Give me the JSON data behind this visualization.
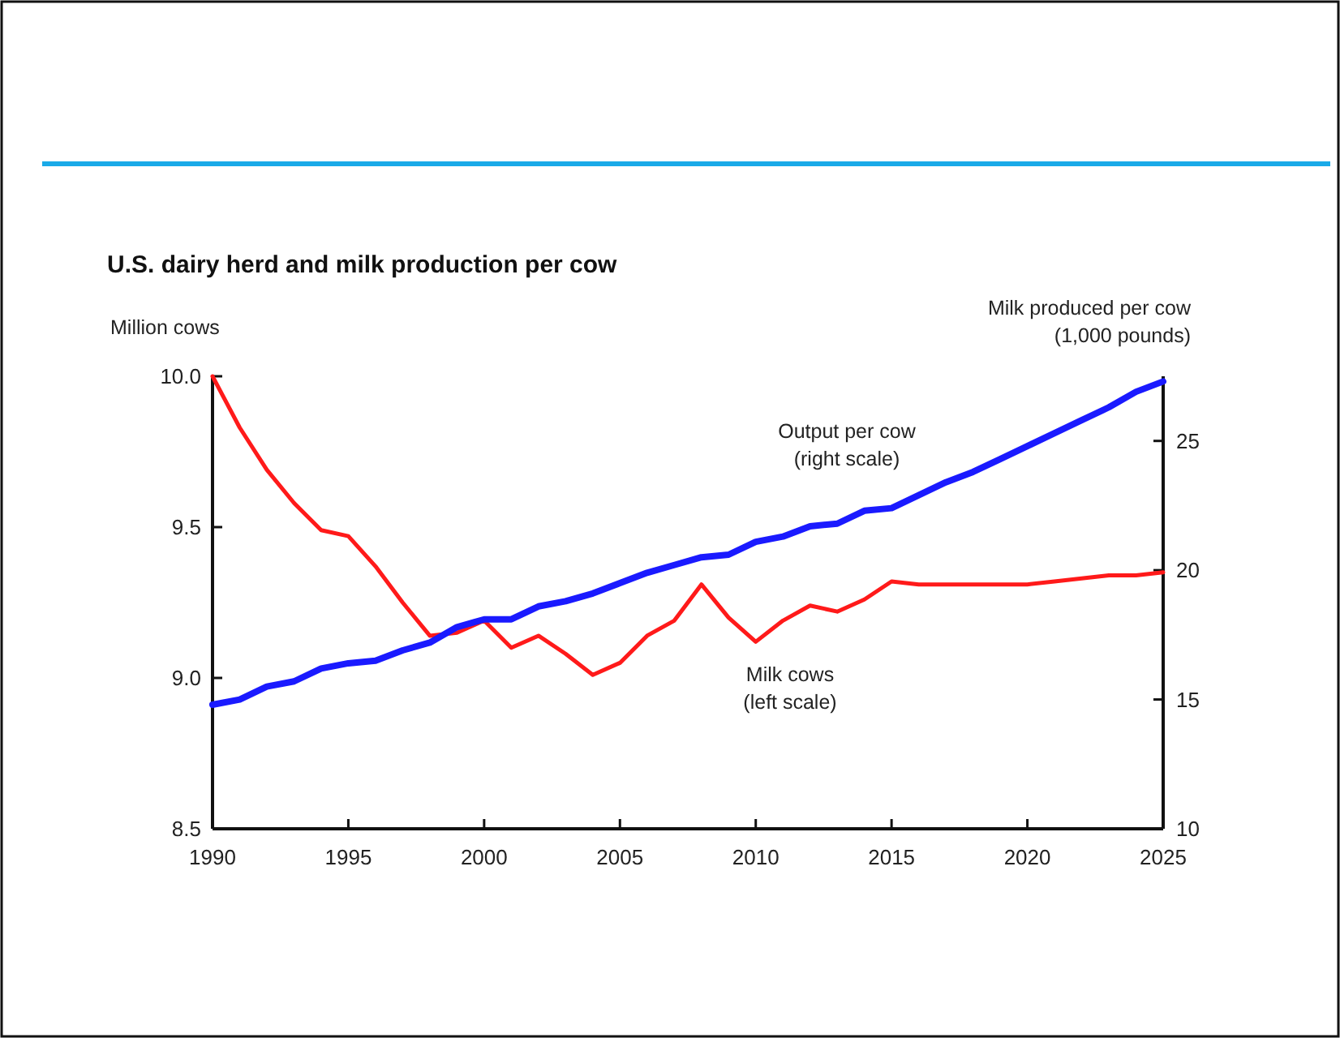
{
  "chart_data": {
    "type": "line",
    "title": "U.S. dairy herd and milk production per cow",
    "ylabel": "Million cows",
    "y2label": "Milk produced per cow\n(1,000 pounds)",
    "x": [
      1990,
      1991,
      1992,
      1993,
      1994,
      1995,
      1996,
      1997,
      1998,
      1999,
      2000,
      2001,
      2002,
      2003,
      2004,
      2005,
      2006,
      2007,
      2008,
      2009,
      2010,
      2011,
      2012,
      2013,
      2014,
      2015,
      2016,
      2017,
      2018,
      2019,
      2020,
      2021,
      2022,
      2023,
      2024,
      2025
    ],
    "series": [
      {
        "color": "#ff1a1a",
        "values": [
          10.0,
          9.83,
          9.69,
          9.58,
          9.49,
          9.47,
          9.37,
          9.25,
          9.14,
          9.15,
          9.19,
          9.1,
          9.14,
          9.08,
          9.01,
          9.05,
          9.14,
          9.19,
          9.31,
          9.2,
          9.12,
          9.19,
          9.24,
          9.22,
          9.26,
          9.32,
          9.31,
          9.31,
          9.31,
          9.31,
          9.31,
          9.32,
          9.33,
          9.34,
          9.34,
          9.35
        ]
      },
      {
        "color": "#1a1aff",
        "axis": "y2",
        "values": [
          14.8,
          15.0,
          15.5,
          15.7,
          16.2,
          16.4,
          16.5,
          16.9,
          17.2,
          17.8,
          18.1,
          18.1,
          18.6,
          18.8,
          19.1,
          19.5,
          19.9,
          20.2,
          20.5,
          20.6,
          21.1,
          21.3,
          21.7,
          21.8,
          22.3,
          22.4,
          22.9,
          23.4,
          23.8,
          24.3,
          24.8,
          25.3,
          25.8,
          26.3,
          26.9,
          27.3
        ]
      }
    ],
    "xlim": [
      1990,
      2025
    ],
    "xticks": [
      1990,
      1995,
      2000,
      2005,
      2010,
      2015,
      2020,
      2025
    ],
    "ylim": [
      8.5,
      10.0
    ],
    "yticks": [
      {
        "value": 8.5,
        "label": "8.5"
      },
      {
        "value": 9.0,
        "label": "9.0"
      },
      {
        "value": 9.5,
        "label": "9.5"
      },
      {
        "value": 10.0,
        "label": "10.0"
      }
    ],
    "y2lim": [
      10,
      27.5
    ],
    "y2ticks": [
      10,
      15,
      20,
      25
    ],
    "annotations": [
      "Output per cow\n(right scale)",
      "Milk cows\n(left scale)"
    ],
    "grid": false,
    "line_style": "solid",
    "marker": "none"
  }
}
